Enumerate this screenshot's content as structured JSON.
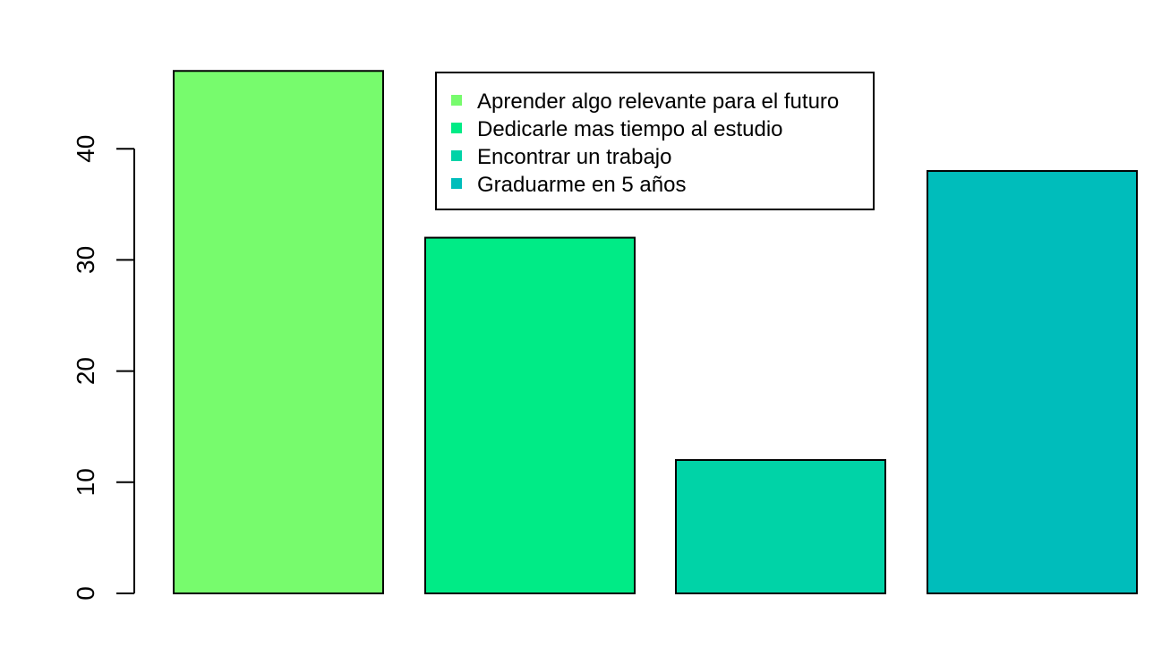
{
  "chart_data": {
    "type": "bar",
    "categories": [
      "Aprender algo relevante para el futuro",
      "Dedicarle mas tiempo al estudio",
      "Encontrar un trabajo",
      "Graduarme en 5 años"
    ],
    "values": [
      47,
      32,
      12,
      38
    ],
    "colors": [
      "#77fb6d",
      "#00eb86",
      "#00d3a7",
      "#00bdbb"
    ],
    "ylim": [
      0,
      47
    ],
    "yticks": [
      "0",
      "10",
      "20",
      "30",
      "40"
    ],
    "title": "",
    "xlabel": "",
    "ylabel": "",
    "grid": false,
    "legend": {
      "position": "top-center",
      "entries": [
        "Aprender algo relevante para el futuro",
        "Dedicarle mas tiempo al estudio",
        "Encontrar un trabajo",
        "Graduarme en 5 años"
      ]
    }
  }
}
